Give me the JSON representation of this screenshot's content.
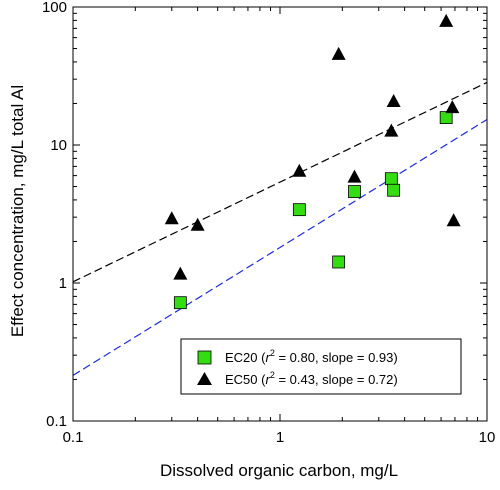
{
  "chart_data": {
    "type": "scatter",
    "xlabel": "Dissolved organic carbon, mg/L",
    "ylabel": "Effect concentration, mg/L total Al",
    "x_scale": "log",
    "y_scale": "log",
    "xlim": [
      0.1,
      10
    ],
    "ylim": [
      0.1,
      100
    ],
    "x_ticks": [
      0.1,
      1,
      10
    ],
    "x_tick_labels": [
      "0.1",
      "1",
      "10"
    ],
    "y_ticks": [
      0.1,
      1,
      10,
      100
    ],
    "y_tick_labels": [
      "0.1",
      "1",
      "10",
      "100"
    ],
    "grid": false,
    "legend_position": "bottom-right",
    "series": [
      {
        "name": "EC20",
        "marker": "square",
        "color": "#33dd11",
        "line_color": "#1f2bd6",
        "r2": "0.80",
        "slope": "0.93",
        "legend_label": "EC20 (r² = 0.80, slope = 0.93)",
        "legend_parts": [
          "EC20 (",
          "r",
          "2",
          " = 0.80, slope = 0.93)"
        ],
        "x": [
          0.33,
          1.24,
          1.92,
          2.29,
          3.45,
          3.54,
          6.35
        ],
        "y": [
          0.72,
          3.4,
          1.42,
          4.6,
          5.7,
          4.7,
          15.8
        ],
        "fit": {
          "x": [
            0.1,
            10
          ],
          "y": [
            0.214,
            15.3
          ]
        }
      },
      {
        "name": "EC50",
        "marker": "triangle",
        "color": "#000000",
        "line_color": "#000000",
        "r2": "0.43",
        "slope": "0.72",
        "legend_label": "EC50 (r² = 0.43, slope = 0.72)",
        "legend_parts": [
          "EC50 (",
          "r",
          "2",
          " = 0.43, slope = 0.72)"
        ],
        "x": [
          0.3,
          0.33,
          0.4,
          1.24,
          1.92,
          2.29,
          3.45,
          3.54,
          6.35,
          6.8,
          6.9
        ],
        "y": [
          2.9,
          1.15,
          2.6,
          6.4,
          45,
          5.8,
          12.5,
          20.5,
          78,
          18.5,
          2.8
        ],
        "fit": {
          "x": [
            0.1,
            10
          ],
          "y": [
            1.02,
            28.4
          ]
        }
      }
    ]
  }
}
